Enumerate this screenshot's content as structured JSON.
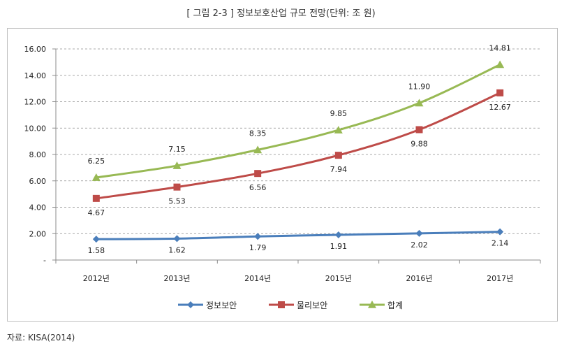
{
  "title": "[ 그림 2-3 ] 정보보호산업 규모 전망(단위: 조 원)",
  "source": "자료: KISA(2014)",
  "chart_data": {
    "type": "line",
    "categories": [
      "2012년",
      "2013년",
      "2014년",
      "2015년",
      "2016년",
      "2017년"
    ],
    "series": [
      {
        "name": "정보보안",
        "values": [
          1.58,
          1.62,
          1.79,
          1.91,
          2.02,
          2.14
        ],
        "labels": [
          "1.58",
          "1.62",
          "1.79",
          "1.91",
          "2.02",
          "2.14"
        ],
        "color": "#4a7ebb",
        "marker": "diamond"
      },
      {
        "name": "물리보안",
        "values": [
          4.67,
          5.53,
          6.56,
          7.94,
          9.88,
          12.67
        ],
        "labels": [
          "4.67",
          "5.53",
          "6.56",
          "7.94",
          "9.88",
          "12.67"
        ],
        "color": "#be4b48",
        "marker": "square"
      },
      {
        "name": "합계",
        "values": [
          6.25,
          7.15,
          8.35,
          9.85,
          11.9,
          14.81
        ],
        "labels": [
          "6.25",
          "7.15",
          "8.35",
          "9.85",
          "11.90",
          "14.81"
        ],
        "color": "#98b954",
        "marker": "triangle"
      }
    ],
    "ylim": [
      0,
      16
    ],
    "yticks": [
      0,
      2,
      4,
      6,
      8,
      10,
      12,
      14,
      16
    ],
    "ytick_labels": [
      "-",
      "2.00",
      "4.00",
      "6.00",
      "8.00",
      "10.00",
      "12.00",
      "14.00",
      "16.00"
    ],
    "grid": "horizontal dashed",
    "legend": "bottom"
  }
}
